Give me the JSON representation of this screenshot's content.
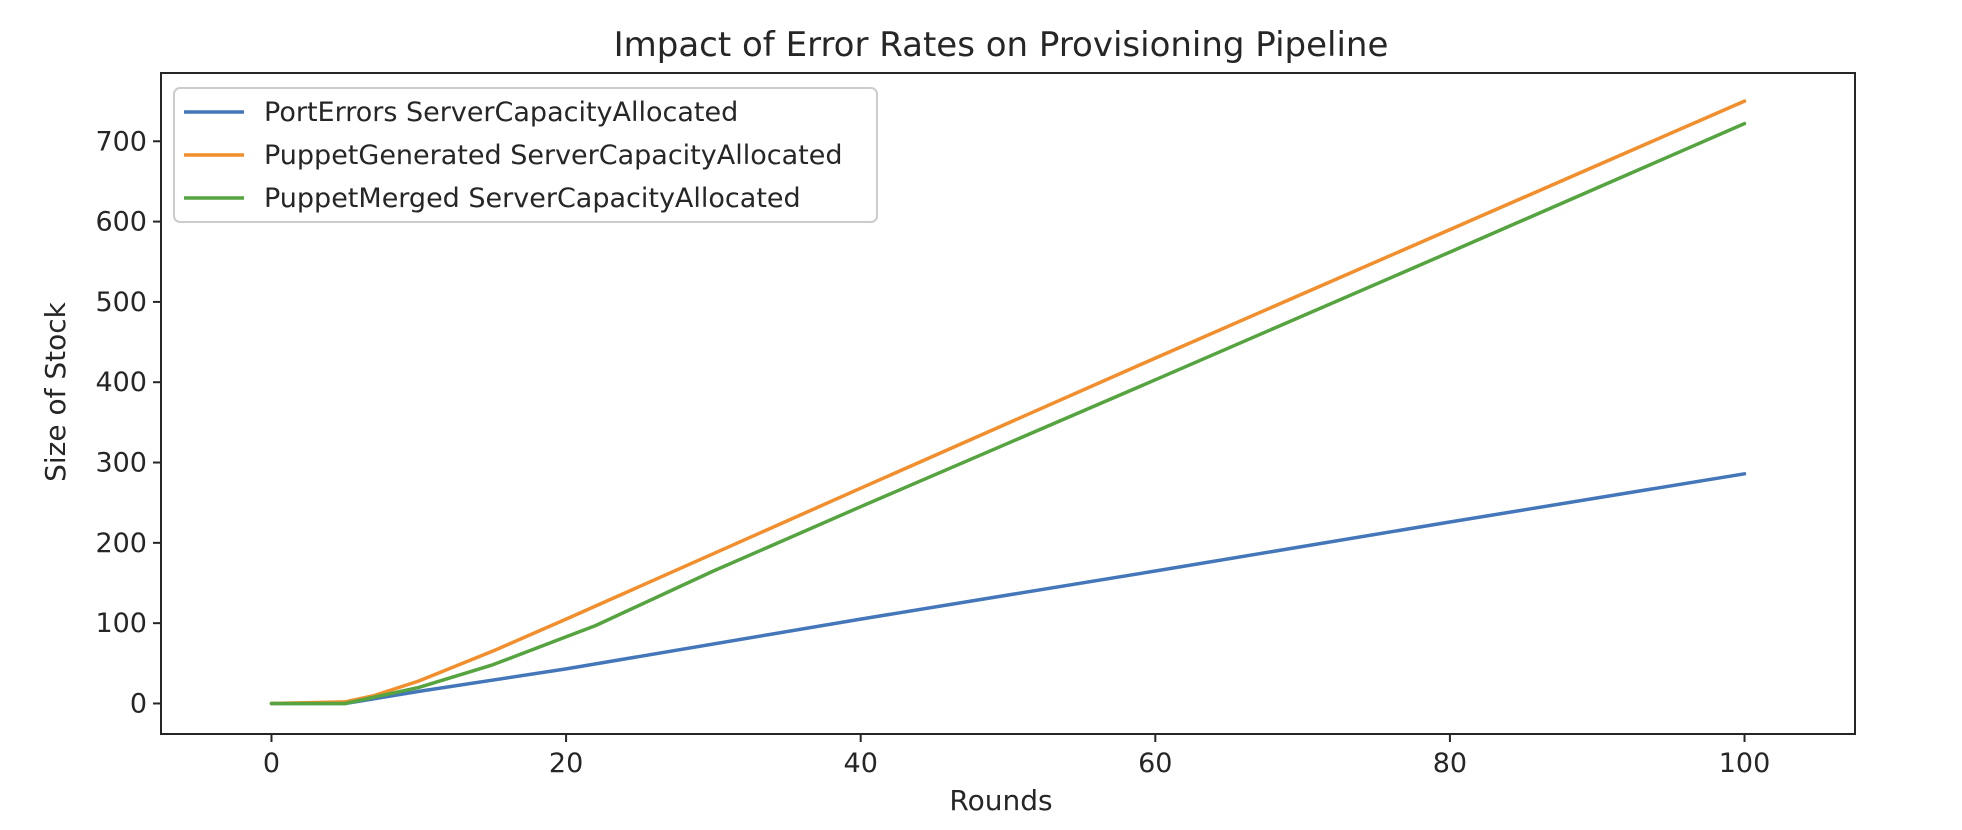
{
  "chart_data": {
    "type": "line",
    "title": "Impact of Error Rates on Provisioning Pipeline",
    "xlabel": "Rounds",
    "ylabel": "Size of Stock",
    "xlim": [
      -7.5,
      107.5
    ],
    "ylim": [
      -38,
      785
    ],
    "xticks": [
      0,
      20,
      40,
      60,
      80,
      100
    ],
    "yticks": [
      0,
      100,
      200,
      300,
      400,
      500,
      600,
      700
    ],
    "grid": false,
    "legend_position": "top-left",
    "series": [
      {
        "name": "PortErrors ServerCapacityAllocated",
        "color": "#4477b9",
        "x": [
          0,
          5,
          10,
          20,
          40,
          60,
          80,
          100
        ],
        "y": [
          0,
          0,
          15,
          43,
          105,
          165,
          226,
          286
        ]
      },
      {
        "name": "PuppetGenerated ServerCapacityAllocated",
        "color": "#f28e2b",
        "x": [
          0,
          5,
          7,
          10,
          15,
          20,
          40,
          60,
          80,
          100
        ],
        "y": [
          0,
          2,
          10,
          28,
          65,
          105,
          268,
          430,
          590,
          750
        ]
      },
      {
        "name": "PuppetMerged ServerCapacityAllocated",
        "color": "#55a43f",
        "x": [
          0,
          5,
          10,
          15,
          22,
          30,
          40,
          60,
          80,
          100
        ],
        "y": [
          0,
          0,
          20,
          48,
          97,
          165,
          245,
          403,
          562,
          722
        ]
      }
    ]
  }
}
